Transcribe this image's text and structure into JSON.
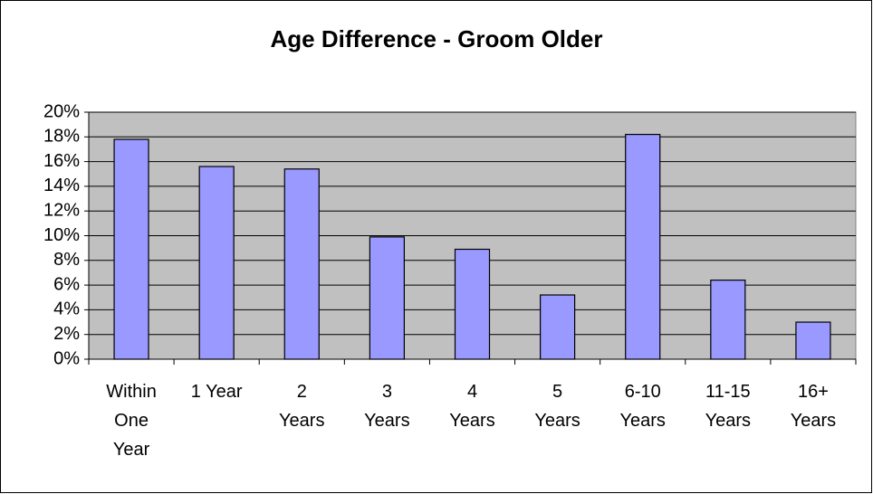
{
  "chart_data": {
    "type": "bar",
    "title": "Age Difference - Groom Older",
    "categories": [
      "Within One Year",
      "1 Year",
      "2 Years",
      "3 Years",
      "4 Years",
      "5 Years",
      "6-10 Years",
      "11-15 Years",
      "16+ Years"
    ],
    "values": [
      17.8,
      15.6,
      15.4,
      9.9,
      8.9,
      5.2,
      18.2,
      6.4,
      3.0
    ],
    "color": "#9999ff",
    "plot_background": "#c0c0c0",
    "ylim": [
      0,
      20
    ],
    "yticks": [
      {
        "value": 0,
        "label": "0%"
      },
      {
        "value": 2,
        "label": "2%"
      },
      {
        "value": 4,
        "label": "4%"
      },
      {
        "value": 6,
        "label": "6%"
      },
      {
        "value": 8,
        "label": "8%"
      },
      {
        "value": 10,
        "label": "10%"
      },
      {
        "value": 12,
        "label": "12%"
      },
      {
        "value": 14,
        "label": "14%"
      },
      {
        "value": 16,
        "label": "16%"
      },
      {
        "value": 18,
        "label": "18%"
      },
      {
        "value": 20,
        "label": "20%"
      }
    ],
    "grid": true
  }
}
